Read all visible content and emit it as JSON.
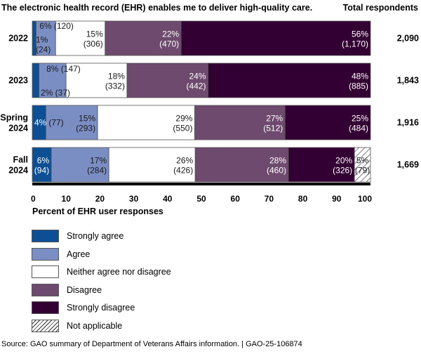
{
  "chart_data": {
    "type": "bar",
    "orientation": "horizontal",
    "stacked": true,
    "title": "The electronic health record (EHR) enables me to deliver high-quality care.",
    "xlabel": "Percent of EHR user responses",
    "ylabel": "",
    "xlim": [
      0,
      100
    ],
    "xticks": [
      0,
      10,
      20,
      30,
      40,
      50,
      60,
      70,
      80,
      90,
      100
    ],
    "total_header": "Total respondents",
    "categories": [
      "2022",
      "2023",
      "Spring 2024",
      "Fall 2024"
    ],
    "category_lines": [
      [
        "2022"
      ],
      [
        "2023"
      ],
      [
        "Spring",
        "2024"
      ],
      [
        "Fall",
        "2024"
      ]
    ],
    "totals": [
      "2,090",
      "1,843",
      "1,916",
      "1,669"
    ],
    "series": [
      {
        "name": "Strongly agree",
        "color": "#0d4f94",
        "text_color": "#ffffff",
        "pattern": "solid",
        "percent_labels": [
          "1%",
          "2%",
          "4%",
          "6%"
        ],
        "counts": [
          24,
          37,
          77,
          94
        ]
      },
      {
        "name": "Agree",
        "color": "#7b8ec4",
        "text_color": "#1a1a1a",
        "pattern": "solid",
        "percent_labels": [
          "6%",
          "8%",
          "15%",
          "17%"
        ],
        "counts": [
          120,
          147,
          293,
          284
        ]
      },
      {
        "name": "Neither agree nor disagree",
        "color": "#ffffff",
        "text_color": "#1a1a1a",
        "pattern": "solid",
        "percent_labels": [
          "15%",
          "18%",
          "29%",
          "26%"
        ],
        "counts": [
          306,
          332,
          550,
          426
        ]
      },
      {
        "name": "Disagree",
        "color": "#6e4a6e",
        "text_color": "#ffffff",
        "pattern": "solid",
        "percent_labels": [
          "22%",
          "24%",
          "27%",
          "28%"
        ],
        "counts": [
          470,
          442,
          512,
          460
        ]
      },
      {
        "name": "Strongly disagree",
        "color": "#330033",
        "text_color": "#ffffff",
        "pattern": "solid",
        "percent_labels": [
          "56%",
          "48%",
          "25%",
          "20%"
        ],
        "counts": [
          1170,
          885,
          484,
          326
        ]
      },
      {
        "name": "Not applicable",
        "color": "#ffffff",
        "text_color": "#1a1a1a",
        "pattern": "hatch",
        "percent_labels": [
          null,
          null,
          null,
          "5%"
        ],
        "counts": [
          0,
          0,
          0,
          79
        ]
      }
    ],
    "label_texts": {
      "2022": {
        "sa": "1%",
        "sa_count": "(24)",
        "a_pct": "6%",
        "a_count": "(120)"
      },
      "2023": {
        "sa_a": "2% (37)",
        "a": "8% (147)"
      },
      "spring": {
        "sa": "4%",
        "sa_count": "(77)"
      }
    },
    "grid": false,
    "legend_position": "bottom-left"
  },
  "source": "Source: GAO summary of Department of Veterans Affairs information.  |  GAO-25-106874"
}
